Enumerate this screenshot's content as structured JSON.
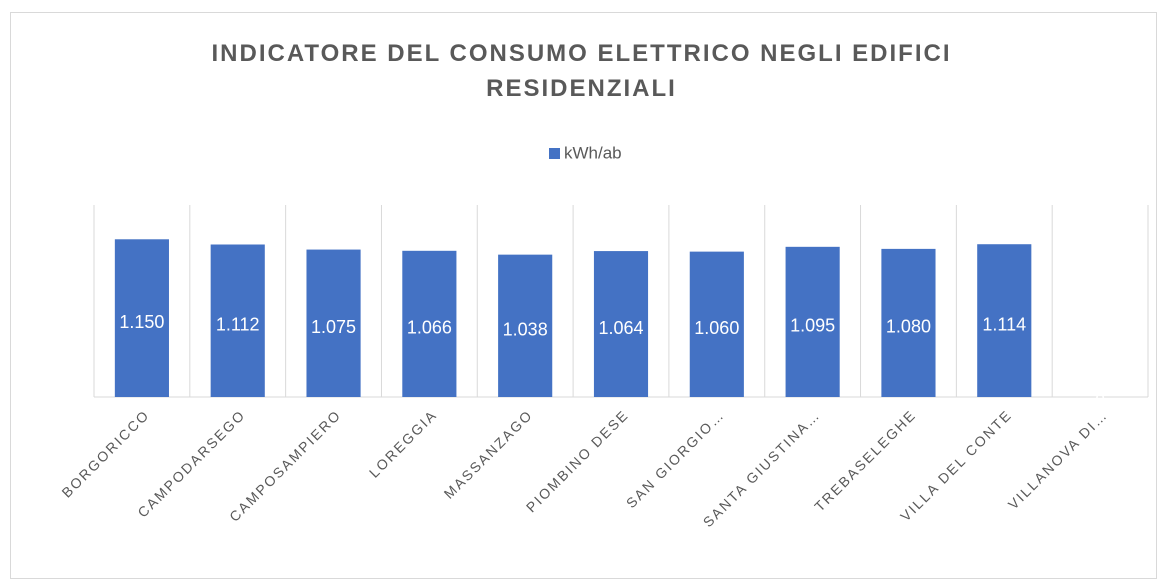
{
  "chart_data": {
    "type": "bar",
    "title": "INDICATORE DEL CONSUMO ELETTRICO NEGLI EDIFICI RESIDENZIALI",
    "categories": [
      "BORGORICCO",
      "CAMPODARSEGO",
      "CAMPOSAMPIERO",
      "LOREGGIA",
      "MASSANZAGO",
      "PIOMBINO DESE",
      "SAN GIORGIO…",
      "SANTA GIUSTINA…",
      "TREBASELEGHE",
      "VILLA DEL CONTE",
      "VILLANOVA DI…"
    ],
    "series": [
      {
        "name": "kWh/ab",
        "color": "#4472c4",
        "values": [
          1150,
          1112,
          1075,
          1066,
          1038,
          1064,
          1060,
          1095,
          1080,
          1114,
          0
        ],
        "value_labels": [
          "1.150",
          "1.112",
          "1.075",
          "1.066",
          "1.038",
          "1.064",
          "1.060",
          "1.095",
          "1.080",
          "1.114",
          "0"
        ]
      }
    ],
    "ylim": [
      0,
      1400
    ],
    "legend": "top"
  }
}
